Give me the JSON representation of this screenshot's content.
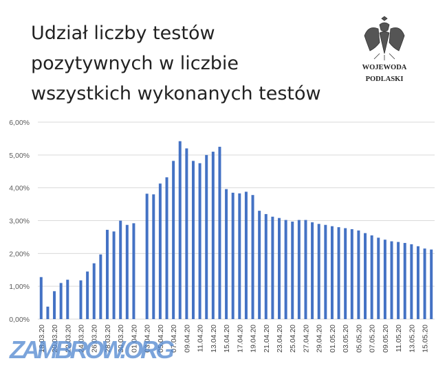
{
  "chart_data": {
    "type": "bar",
    "title": [
      "Udział liczby testów",
      "pozytywnych w liczbie",
      "wszystkich wykonanych testów"
    ],
    "emblem_text": [
      "WOJEWODA",
      "PODLASKI"
    ],
    "watermark": "ZAMBROW.ORG",
    "color": "#4472c4",
    "grid": true,
    "ylim": [
      0,
      6
    ],
    "yticks": [
      {
        "value": 0,
        "label": "0,00%"
      },
      {
        "value": 1,
        "label": "1,00%"
      },
      {
        "value": 2,
        "label": "2,00%"
      },
      {
        "value": 3,
        "label": "3,00%"
      },
      {
        "value": 4,
        "label": "4,00%"
      },
      {
        "value": 5,
        "label": "5,00%"
      },
      {
        "value": 6,
        "label": "6,00%"
      }
    ],
    "categories": [
      "18.03.20",
      null,
      "20.03.20",
      null,
      "22.03.20",
      null,
      "24.03.20",
      null,
      "26.03.20",
      null,
      "28.03.20",
      null,
      "30.03.20",
      null,
      "01.04.20",
      null,
      "03.04.20",
      null,
      "05.04.20",
      null,
      "07.04.20",
      null,
      "09.04.20",
      null,
      "11.04.20",
      null,
      "13.04.20",
      null,
      "15.04.20",
      null,
      "17.04.20",
      null,
      "19.04.20",
      null,
      "21.04.20",
      null,
      "23.04.20",
      null,
      "25.04.20",
      null,
      "27.04.20",
      null,
      "29.04.20",
      null,
      "01.05.20",
      null,
      "03.05.20",
      null,
      "05.05.20",
      null,
      "07.05.20",
      null,
      "09.05.20",
      null,
      "11.05.20",
      null,
      "13.05.20",
      null,
      "15.05.20",
      null
    ],
    "values": [
      1.28,
      0.38,
      0.85,
      1.1,
      1.2,
      null,
      1.18,
      1.45,
      1.7,
      1.97,
      2.72,
      2.67,
      3.0,
      2.87,
      2.92,
      null,
      3.82,
      3.8,
      4.13,
      4.32,
      4.82,
      5.42,
      5.2,
      4.82,
      4.75,
      5.0,
      5.1,
      5.25,
      3.96,
      3.85,
      3.83,
      3.88,
      3.78,
      3.3,
      3.2,
      3.12,
      3.08,
      3.02,
      2.97,
      3.02,
      3.02,
      2.95,
      2.9,
      2.87,
      2.83,
      2.8,
      2.77,
      2.74,
      2.7,
      2.62,
      2.55,
      2.48,
      2.42,
      2.37,
      2.35,
      2.32,
      2.28,
      2.22,
      2.15,
      2.12
    ]
  }
}
